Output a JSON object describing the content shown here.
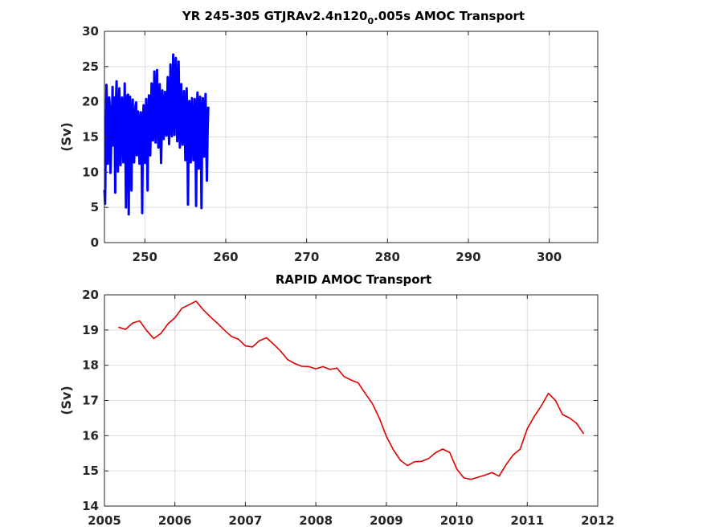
{
  "chart_data": [
    {
      "type": "line",
      "title": "YR 245-305 GTJRAv2.4n120",
      "title_subscript": "0",
      "title_suffix": ".005s AMOC Transport",
      "xlabel": "",
      "ylabel": "(Sv)",
      "xlim": [
        245,
        306
      ],
      "ylim": [
        0,
        30
      ],
      "xticks": [
        250,
        260,
        270,
        280,
        290,
        300
      ],
      "yticks": [
        0,
        5,
        10,
        15,
        20,
        25,
        30
      ],
      "grid": true,
      "color": "#0000ff",
      "samples_per_year": 12,
      "note": "",
      "series": [
        {
          "values": [
            7.5,
            5.5,
            14.9,
            22.4,
            18.5,
            11.2,
            16.8,
            20.6,
            19.3,
            9.9,
            13.8,
            16.4,
            22.1,
            13.8,
            17.7,
            20.6,
            7.1,
            19.8,
            22.9,
            16.2,
            10.1,
            14.9,
            21.9,
            16.8,
            11.0,
            16.4,
            20.6,
            19.1,
            11.4,
            14.5,
            22.6,
            15.8,
            5.0,
            16.0,
            20.9,
            21.0,
            4.0,
            15.8,
            20.7,
            15.8,
            7.4,
            15.3,
            20.3,
            15.2,
            11.4,
            14.3,
            19.4,
            19.9,
            12.4,
            12.9,
            18.6,
            16.2,
            11.2,
            14.6,
            18.5,
            15.7,
            4.2,
            15.6,
            19.5,
            18.1,
            11.3,
            16.3,
            20.4,
            16.1,
            7.4,
            16.1,
            20.9,
            17.7,
            12.4,
            17.5,
            22.6,
            21.4,
            14.5,
            16.6,
            24.3,
            17.9,
            14.2,
            18.6,
            24.5,
            18.5,
            13.5,
            15.9,
            22.5,
            16.5,
            11.3,
            15.8,
            21.6,
            18.8,
            14.7,
            17.0,
            21.4,
            16.9,
            15.2,
            19.2,
            23.5,
            17.9,
            14.0,
            19.3,
            25.3,
            21.8,
            15.1,
            19.3,
            26.7,
            19.9,
            15.3,
            20.3,
            26.2,
            21.6,
            14.4,
            17.6,
            25.7,
            19.3,
            13.5,
            16.3,
            22.5,
            16.2,
            13.9,
            16.9,
            21.5,
            17.5,
            11.7,
            16.9,
            21.9,
            16.9,
            5.4,
            15.4,
            20.1,
            17.3,
            11.4,
            16.3,
            20.5,
            16.4,
            11.7,
            15.8,
            20.4,
            16.6,
            5.2,
            17.3,
            21.3,
            18.5,
            10.5,
            15.1,
            20.7,
            17.9,
            4.9,
            15.6,
            20.5,
            18.6,
            12.2,
            16.9,
            21.1,
            14.6,
            8.8,
            15.3,
            19.3
          ]
        }
      ]
    },
    {
      "type": "line",
      "title": "RAPID AMOC Transport",
      "xlabel": "",
      "ylabel": "(Sv)",
      "xlim": [
        2005,
        2012
      ],
      "ylim": [
        14,
        20
      ],
      "xticks": [
        2005,
        2006,
        2007,
        2008,
        2009,
        2010,
        2011,
        2012
      ],
      "yticks": [
        14,
        15,
        16,
        17,
        18,
        19,
        20
      ],
      "grid": true,
      "color": "#e00000",
      "series": [
        {
          "x": [
            2005.2,
            2005.3,
            2005.4,
            2005.5,
            2005.6,
            2005.7,
            2005.8,
            2005.9,
            2006.0,
            2006.1,
            2006.2,
            2006.3,
            2006.4,
            2006.5,
            2006.6,
            2006.7,
            2006.8,
            2006.9,
            2007.0,
            2007.1,
            2007.2,
            2007.3,
            2007.4,
            2007.5,
            2007.6,
            2007.7,
            2007.8,
            2007.9,
            2008.0,
            2008.1,
            2008.2,
            2008.3,
            2008.4,
            2008.5,
            2008.6,
            2008.7,
            2008.8,
            2008.9,
            2009.0,
            2009.1,
            2009.2,
            2009.3,
            2009.4,
            2009.5,
            2009.6,
            2009.7,
            2009.8,
            2009.9,
            2010.0,
            2010.1,
            2010.2,
            2010.3,
            2010.4,
            2010.5,
            2010.6,
            2010.7,
            2010.8,
            2010.9,
            2011.0,
            2011.1,
            2011.2,
            2011.3,
            2011.4,
            2011.5,
            2011.6,
            2011.7,
            2011.8
          ],
          "values": [
            19.08,
            19.02,
            19.2,
            19.26,
            18.98,
            18.76,
            18.9,
            19.17,
            19.35,
            19.62,
            19.72,
            19.82,
            19.58,
            19.38,
            19.2,
            19.0,
            18.82,
            18.74,
            18.55,
            18.52,
            18.7,
            18.78,
            18.6,
            18.4,
            18.16,
            18.05,
            17.97,
            17.96,
            17.9,
            17.96,
            17.88,
            17.92,
            17.68,
            17.58,
            17.5,
            17.2,
            16.92,
            16.5,
            15.98,
            15.6,
            15.3,
            15.15,
            15.26,
            15.27,
            15.35,
            15.52,
            15.62,
            15.52,
            15.05,
            14.8,
            14.76,
            14.82,
            14.88,
            14.95,
            14.85,
            15.18,
            15.45,
            15.62,
            16.2,
            16.55,
            16.85,
            17.2,
            17.0,
            16.6,
            16.5,
            16.35,
            16.05
          ]
        }
      ]
    }
  ]
}
